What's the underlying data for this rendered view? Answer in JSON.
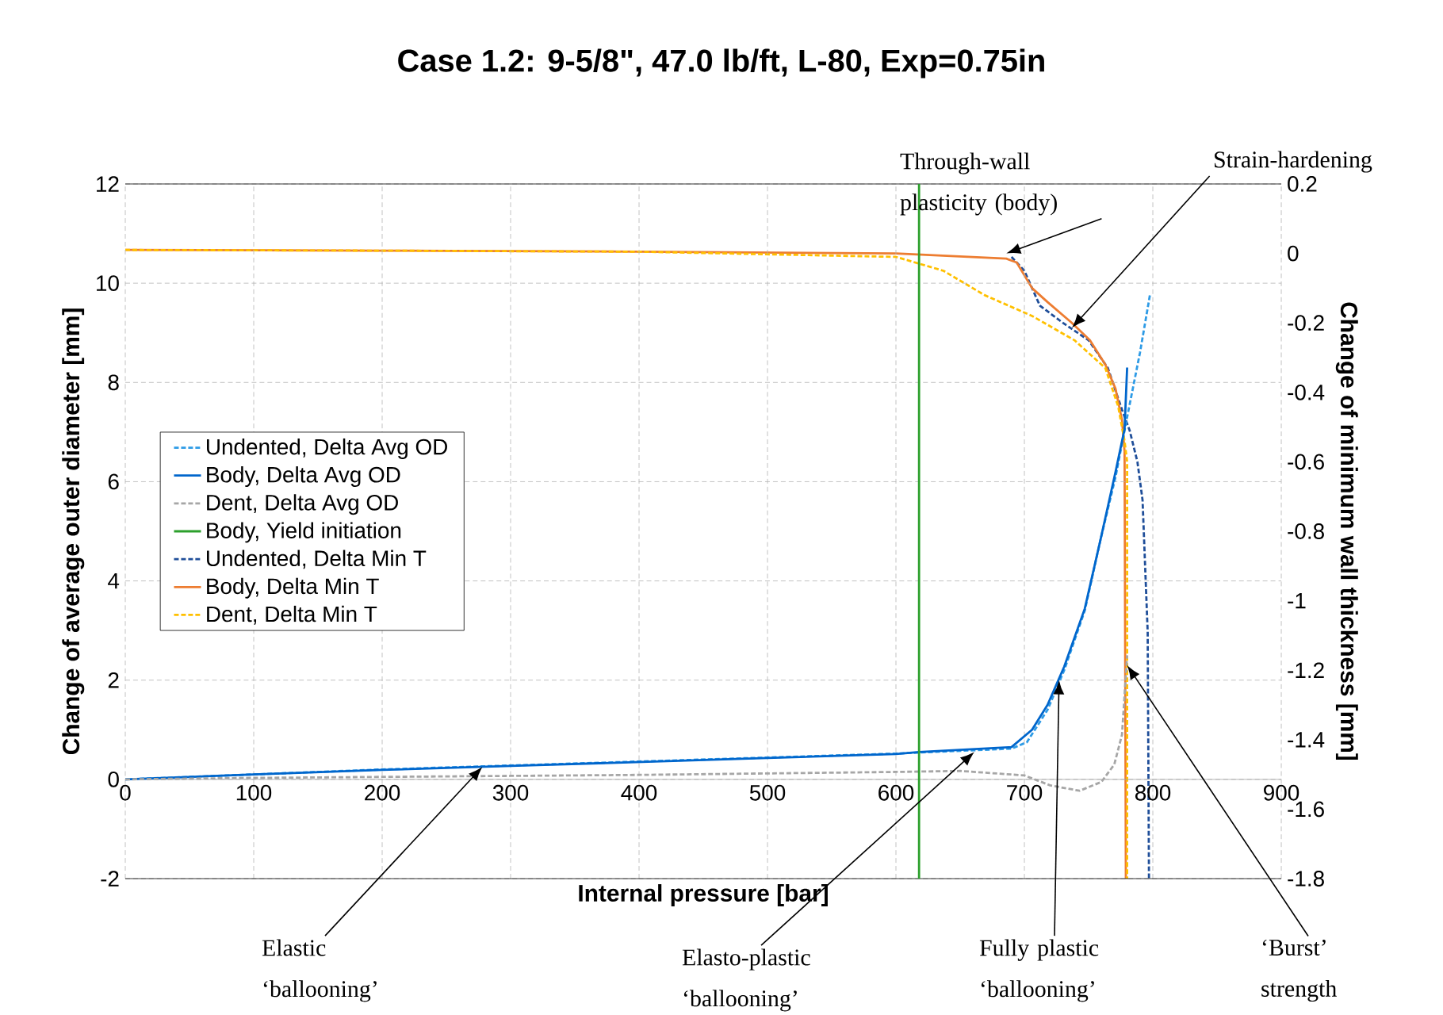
{
  "chart_data": {
    "type": "line",
    "title": "Case 1.2: 9-5/8\", 47.0 lb/ft, L-80, Exp=0.75in",
    "xlabel": "Internal pressure [bar]",
    "ylabel": "Change of average outer diameter [mm]",
    "y2label": "Change of minimum wall thickness [mm]",
    "xlim": [
      0,
      900
    ],
    "xticks": [
      0,
      100,
      200,
      300,
      400,
      500,
      600,
      700,
      800,
      900
    ],
    "ylim": [
      -2,
      12
    ],
    "yticks": [
      -2,
      0,
      2,
      4,
      6,
      8,
      10,
      12
    ],
    "y2lim": [
      -1.8,
      0.2
    ],
    "y2ticks": [
      -1.8,
      -1.6,
      -1.4,
      -1.2,
      -1,
      -0.8,
      -0.6,
      -0.4,
      -0.2,
      0,
      0.2
    ],
    "grid": true,
    "legend": "left",
    "series": [
      {
        "name": "Undented, Delta Avg OD",
        "color": "#2e9be6",
        "line_style": "dashed",
        "x": [
          0,
          100,
          200,
          300,
          400,
          500,
          600,
          690,
          702,
          718,
          731,
          747,
          759,
          771,
          780,
          790,
          798
        ],
        "values": [
          0,
          0.1,
          0.2,
          0.28,
          0.36,
          0.44,
          0.52,
          0.62,
          0.75,
          1.4,
          2.2,
          3.4,
          4.8,
          6.1,
          7.3,
          8.6,
          9.8
        ]
      },
      {
        "name": "Body, Delta Avg OD",
        "color": "#0066cc",
        "line_style": "solid",
        "x": [
          0,
          100,
          200,
          300,
          400,
          500,
          600,
          618,
          690,
          706,
          718,
          731,
          747,
          759,
          771,
          778,
          780
        ],
        "values": [
          0,
          0.1,
          0.19,
          0.27,
          0.35,
          0.43,
          0.51,
          0.55,
          0.65,
          1.0,
          1.5,
          2.27,
          3.44,
          4.8,
          6.2,
          7.06,
          8.3
        ]
      },
      {
        "name": "Dent, Delta Avg OD",
        "color": "#a6a6a6",
        "line_style": "dashed",
        "x": [
          0,
          100,
          200,
          300,
          400,
          500,
          600,
          650,
          700,
          720,
          743,
          760,
          770,
          776,
          780
        ],
        "values": [
          0,
          0.03,
          0.05,
          0.07,
          0.09,
          0.12,
          0.15,
          0.17,
          0.08,
          -0.12,
          -0.23,
          -0.05,
          0.3,
          0.9,
          2.5
        ]
      },
      {
        "name": "Body, Yield initiation",
        "color": "#2ca02c",
        "line_style": "solid",
        "x": [
          618,
          618
        ],
        "values": [
          -2,
          12
        ]
      },
      {
        "name": "Undented, Delta Min T",
        "color": "#1f4e99",
        "line_style": "dashed",
        "axis": "y2",
        "x": [
          690,
          700,
          712,
          730,
          750,
          765,
          776,
          782,
          788,
          792,
          796,
          797
        ],
        "values": [
          -0.01,
          -0.05,
          -0.15,
          -0.2,
          -0.25,
          -0.33,
          -0.45,
          -0.51,
          -0.6,
          -0.71,
          -1.09,
          -1.8
        ]
      },
      {
        "name": "Body, Delta Min T",
        "color": "#ed7d31",
        "line_style": "solid",
        "axis": "y2",
        "x": [
          0,
          200,
          400,
          600,
          686,
          694,
          706,
          718,
          737,
          751,
          763,
          771,
          776,
          778,
          779
        ],
        "values": [
          0.01,
          0.008,
          0.005,
          0.0,
          -0.015,
          -0.026,
          -0.1,
          -0.14,
          -0.2,
          -0.25,
          -0.32,
          -0.39,
          -0.48,
          -0.57,
          -1.8
        ]
      },
      {
        "name": "Dent, Delta Min T",
        "color": "#ffc000",
        "line_style": "dashed",
        "axis": "y2",
        "x": [
          0,
          200,
          400,
          600,
          637,
          669,
          706,
          739,
          763,
          773,
          778,
          780,
          780
        ],
        "values": [
          0.01,
          0.008,
          0.005,
          -0.01,
          -0.05,
          -0.12,
          -0.18,
          -0.25,
          -0.33,
          -0.44,
          -0.54,
          -0.6,
          -1.8
        ]
      }
    ],
    "annotations": [
      {
        "text": "Through-wall plasticity (body)",
        "x": 686,
        "y": 10.6
      },
      {
        "text": "Strain-hardening",
        "x": 737,
        "y": 9.1
      },
      {
        "text": "Elastic ‘ballooning’",
        "x": 278,
        "y": 0.25
      },
      {
        "text": "Elasto-plastic ‘ballooning’",
        "x": 661,
        "y": 0.55
      },
      {
        "text": "Fully plastic ‘ballooning’",
        "x": 727,
        "y": 2.0
      },
      {
        "text": "‘Burst’ strength",
        "x": 780,
        "y": 2.3
      }
    ]
  }
}
